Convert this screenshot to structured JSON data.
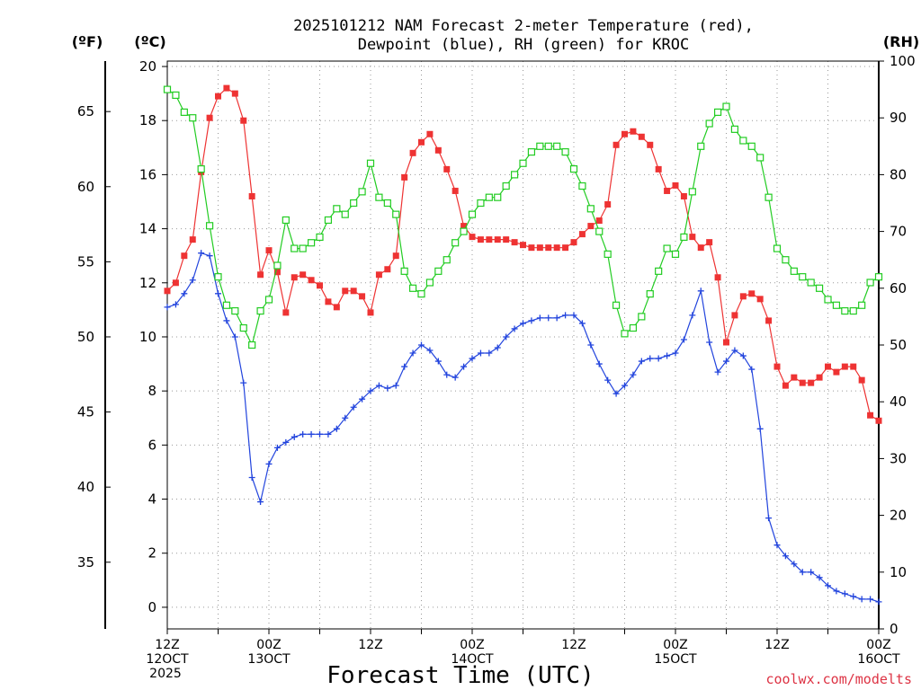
{
  "chart_data": {
    "type": "line",
    "title_lines": [
      "2025101212 NAM Forecast 2-meter Temperature (red),",
      "Dewpoint (blue), RH (green) for KROC"
    ],
    "xlabel": "Forecast Time (UTC)",
    "credit": "coolwx.com/modelts",
    "units": {
      "fahrenheit": "(ºF)",
      "celsius": "(ºC)",
      "rh": "(RH)"
    },
    "x_range": [
      0,
      84
    ],
    "x_ticks": [
      {
        "x": 0,
        "lines": [
          "12Z",
          "12OCT",
          "2025"
        ]
      },
      {
        "x": 12,
        "lines": [
          "00Z",
          "13OCT"
        ]
      },
      {
        "x": 24,
        "lines": [
          "12Z"
        ]
      },
      {
        "x": 36,
        "lines": [
          "00Z",
          "14OCT"
        ]
      },
      {
        "x": 48,
        "lines": [
          "12Z"
        ]
      },
      {
        "x": 60,
        "lines": [
          "00Z",
          "15OCT"
        ]
      },
      {
        "x": 72,
        "lines": [
          "12Z"
        ]
      },
      {
        "x": 84,
        "lines": [
          "00Z",
          "16OCT"
        ]
      }
    ],
    "y_celsius": {
      "range": [
        -0.8,
        20.2
      ],
      "ticks": [
        "0",
        "2",
        "4",
        "6",
        "8",
        "10",
        "12",
        "14",
        "16",
        "18",
        "20"
      ]
    },
    "y_fahrenheit": {
      "ticks": [
        "35",
        "40",
        "45",
        "50",
        "55",
        "60",
        "65"
      ]
    },
    "y_rh": {
      "range": [
        0,
        100
      ],
      "ticks": [
        "0",
        "10",
        "20",
        "30",
        "40",
        "50",
        "60",
        "70",
        "80",
        "90",
        "100"
      ]
    },
    "series": [
      {
        "name": "Temperature",
        "unit": "C",
        "axis": "left",
        "color": "#ee3333",
        "marker": "filled-square",
        "x": [
          0,
          1,
          2,
          3,
          4,
          5,
          6,
          7,
          8,
          9,
          10,
          11,
          12,
          13,
          14,
          15,
          16,
          17,
          18,
          19,
          20,
          21,
          22,
          23,
          24,
          25,
          26,
          27,
          28,
          29,
          30,
          31,
          32,
          33,
          34,
          35,
          36,
          37,
          38,
          39,
          40,
          41,
          42,
          43,
          44,
          45,
          46,
          47,
          48,
          49,
          50,
          51,
          52,
          53,
          54,
          55,
          56,
          57,
          58,
          59,
          60,
          61,
          62,
          63,
          64,
          65,
          66,
          67,
          68,
          69,
          70,
          71,
          72,
          73,
          74,
          75,
          76,
          77,
          78,
          79,
          80,
          81,
          82,
          83,
          84
        ],
        "values": [
          11.7,
          12.0,
          13.0,
          13.6,
          16.1,
          18.1,
          18.9,
          19.2,
          19.0,
          18.0,
          15.2,
          12.3,
          13.2,
          12.4,
          10.9,
          12.2,
          12.3,
          12.1,
          11.9,
          11.3,
          11.1,
          11.7,
          11.7,
          11.5,
          10.9,
          12.3,
          12.5,
          13.0,
          15.9,
          16.8,
          17.2,
          17.5,
          16.9,
          16.2,
          15.4,
          14.1,
          13.7,
          13.6,
          13.6,
          13.6,
          13.6,
          13.5,
          13.4,
          13.3,
          13.3,
          13.3,
          13.3,
          13.3,
          13.5,
          13.8,
          14.1,
          14.3,
          14.9,
          17.1,
          17.5,
          17.6,
          17.4,
          17.1,
          16.2,
          15.4,
          15.6,
          15.2,
          13.7,
          13.3,
          13.5,
          12.2,
          9.8,
          10.8,
          11.5,
          11.6,
          11.4,
          10.6,
          8.9,
          8.2,
          8.5,
          8.3,
          8.3,
          8.5,
          8.9,
          8.7,
          8.9,
          8.9,
          8.4,
          7.1,
          6.9
        ]
      },
      {
        "name": "Dewpoint",
        "unit": "C",
        "axis": "left",
        "color": "#2244dd",
        "marker": "plus",
        "x": [
          0,
          1,
          2,
          3,
          4,
          5,
          6,
          7,
          8,
          9,
          10,
          11,
          12,
          13,
          14,
          15,
          16,
          17,
          18,
          19,
          20,
          21,
          22,
          23,
          24,
          25,
          26,
          27,
          28,
          29,
          30,
          31,
          32,
          33,
          34,
          35,
          36,
          37,
          38,
          39,
          40,
          41,
          42,
          43,
          44,
          45,
          46,
          47,
          48,
          49,
          50,
          51,
          52,
          53,
          54,
          55,
          56,
          57,
          58,
          59,
          60,
          61,
          62,
          63,
          64,
          65,
          66,
          67,
          68,
          69,
          70,
          71,
          72,
          73,
          74,
          75,
          76,
          77,
          78,
          79,
          80,
          81,
          82,
          83,
          84
        ],
        "values": [
          11.1,
          11.2,
          11.6,
          12.1,
          13.1,
          13.0,
          11.6,
          10.6,
          10.0,
          8.3,
          4.8,
          3.9,
          5.3,
          5.9,
          6.1,
          6.3,
          6.4,
          6.4,
          6.4,
          6.4,
          6.6,
          7.0,
          7.4,
          7.7,
          8.0,
          8.2,
          8.1,
          8.2,
          8.9,
          9.4,
          9.7,
          9.5,
          9.1,
          8.6,
          8.5,
          8.9,
          9.2,
          9.4,
          9.4,
          9.6,
          10.0,
          10.3,
          10.5,
          10.6,
          10.7,
          10.7,
          10.7,
          10.8,
          10.8,
          10.5,
          9.7,
          9.0,
          8.4,
          7.9,
          8.2,
          8.6,
          9.1,
          9.2,
          9.2,
          9.3,
          9.4,
          9.9,
          10.8,
          11.7,
          9.8,
          8.7,
          9.1,
          9.5,
          9.3,
          8.8,
          6.6,
          3.3,
          2.3,
          1.9,
          1.6,
          1.3,
          1.3,
          1.1,
          0.8,
          0.6,
          0.5,
          0.4,
          0.3,
          0.3,
          0.2
        ]
      },
      {
        "name": "RH",
        "unit": "%",
        "axis": "right",
        "color": "#22cc22",
        "marker": "hollow-square",
        "x": [
          0,
          1,
          2,
          3,
          4,
          5,
          6,
          7,
          8,
          9,
          10,
          11,
          12,
          13,
          14,
          15,
          16,
          17,
          18,
          19,
          20,
          21,
          22,
          23,
          24,
          25,
          26,
          27,
          28,
          29,
          30,
          31,
          32,
          33,
          34,
          35,
          36,
          37,
          38,
          39,
          40,
          41,
          42,
          43,
          44,
          45,
          46,
          47,
          48,
          49,
          50,
          51,
          52,
          53,
          54,
          55,
          56,
          57,
          58,
          59,
          60,
          61,
          62,
          63,
          64,
          65,
          66,
          67,
          68,
          69,
          70,
          71,
          72,
          73,
          74,
          75,
          76,
          77,
          78,
          79,
          80,
          81,
          82,
          83,
          84
        ],
        "values": [
          95,
          94,
          91,
          90,
          81,
          71,
          62,
          57,
          56,
          53,
          50,
          56,
          58,
          64,
          72,
          67,
          67,
          68,
          69,
          72,
          74,
          73,
          75,
          77,
          82,
          76,
          75,
          73,
          63,
          60,
          59,
          61,
          63,
          65,
          68,
          70,
          73,
          75,
          76,
          76,
          78,
          80,
          82,
          84,
          85,
          85,
          85,
          84,
          81,
          78,
          74,
          70,
          66,
          57,
          52,
          53,
          55,
          59,
          63,
          67,
          66,
          69,
          77,
          85,
          89,
          91,
          92,
          88,
          86,
          85,
          83,
          76,
          67,
          65,
          63,
          62,
          61,
          60,
          58,
          57,
          56,
          56,
          57,
          61,
          62
        ]
      }
    ]
  }
}
